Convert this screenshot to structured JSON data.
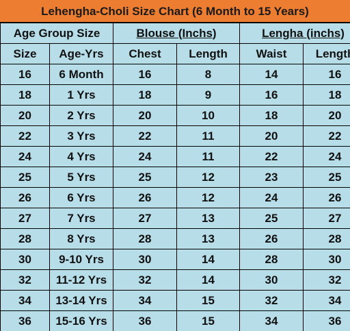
{
  "title": "Lehengha-Choli Size Chart (6 Month to 15 Years)",
  "table": {
    "groups": [
      "Age Group Size",
      "Blouse (Inchs)",
      "Lengha (inchs)"
    ],
    "columns": [
      "Size",
      "Age-Yrs",
      "Chest",
      "Length",
      "Waist",
      "Length"
    ],
    "rows": [
      [
        16,
        "6 Month",
        16,
        8,
        14,
        16
      ],
      [
        18,
        "1 Yrs",
        18,
        9,
        16,
        18
      ],
      [
        20,
        "2 Yrs",
        20,
        10,
        18,
        20
      ],
      [
        22,
        "3 Yrs",
        22,
        11,
        20,
        22
      ],
      [
        24,
        "4 Yrs",
        24,
        11,
        22,
        24
      ],
      [
        25,
        "5 Yrs",
        25,
        12,
        23,
        25
      ],
      [
        26,
        "6 Yrs",
        26,
        12,
        24,
        26
      ],
      [
        27,
        "7 Yrs",
        27,
        13,
        25,
        27
      ],
      [
        28,
        "8 Yrs",
        28,
        13,
        26,
        28
      ],
      [
        30,
        "9-10 Yrs",
        30,
        14,
        28,
        30
      ],
      [
        32,
        "11-12 Yrs",
        32,
        14,
        30,
        32
      ],
      [
        34,
        "13-14 Yrs",
        34,
        15,
        32,
        34
      ],
      [
        36,
        "15-16 Yrs",
        36,
        15,
        34,
        36
      ]
    ]
  }
}
